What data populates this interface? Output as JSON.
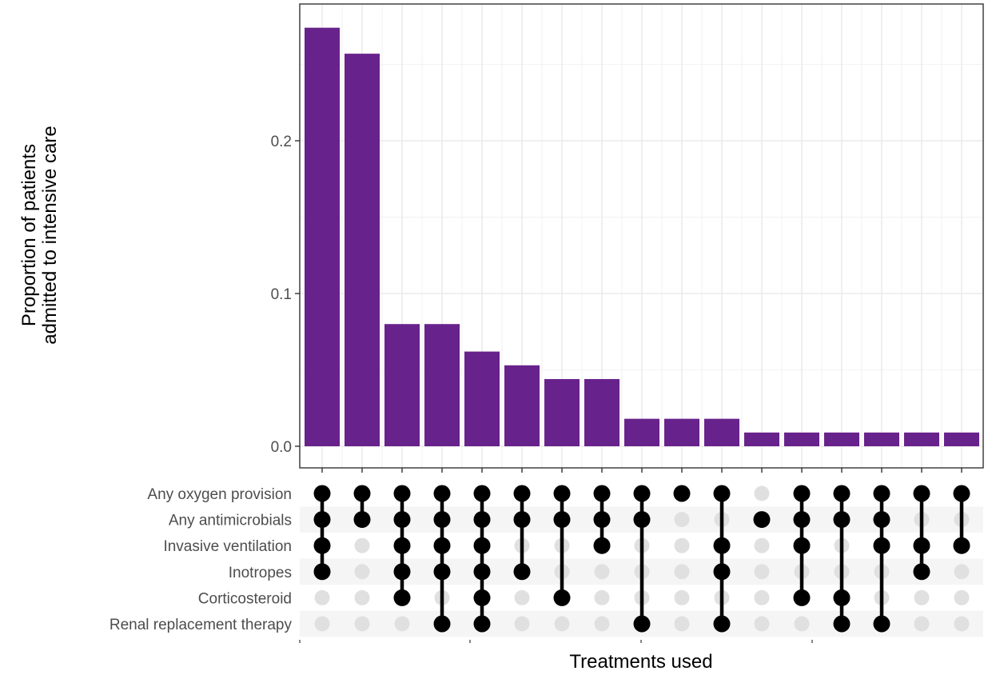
{
  "chart_data": {
    "type": "bar",
    "subtype": "upset",
    "title": "",
    "ylabel": [
      "Proportion of patients",
      "admitted to intensive care"
    ],
    "xlabel": "Treatments used",
    "ylim": [
      0,
      0.288
    ],
    "yticks": [
      0.0,
      0.1,
      0.2
    ],
    "ytick_labels": [
      "0.0",
      "0.1",
      "0.2"
    ],
    "bar_color": "#68228b",
    "grid": true,
    "sets": [
      "Any oxygen provision",
      "Any antimicrobials",
      "Invasive ventilation",
      "Inotropes",
      "Corticosteroid",
      "Renal replacement therapy"
    ],
    "values": [
      0.274,
      0.257,
      0.08,
      0.08,
      0.062,
      0.053,
      0.044,
      0.044,
      0.018,
      0.018,
      0.018,
      0.009,
      0.009,
      0.009,
      0.009,
      0.009,
      0.009
    ],
    "intersections": [
      [
        1,
        1,
        1,
        1,
        0,
        0
      ],
      [
        1,
        1,
        0,
        0,
        0,
        0
      ],
      [
        1,
        1,
        1,
        1,
        1,
        0
      ],
      [
        1,
        1,
        1,
        1,
        0,
        1
      ],
      [
        1,
        1,
        1,
        1,
        1,
        1
      ],
      [
        1,
        1,
        0,
        1,
        0,
        0
      ],
      [
        1,
        1,
        0,
        0,
        1,
        0
      ],
      [
        1,
        1,
        1,
        0,
        0,
        0
      ],
      [
        1,
        1,
        0,
        0,
        0,
        1
      ],
      [
        1,
        0,
        0,
        0,
        0,
        0
      ],
      [
        1,
        0,
        1,
        1,
        0,
        1
      ],
      [
        0,
        1,
        0,
        0,
        0,
        0
      ],
      [
        1,
        1,
        1,
        0,
        1,
        0
      ],
      [
        1,
        1,
        0,
        0,
        1,
        1
      ],
      [
        1,
        1,
        1,
        0,
        0,
        1
      ],
      [
        1,
        0,
        1,
        1,
        0,
        0
      ],
      [
        1,
        0,
        1,
        0,
        0,
        0
      ]
    ]
  }
}
